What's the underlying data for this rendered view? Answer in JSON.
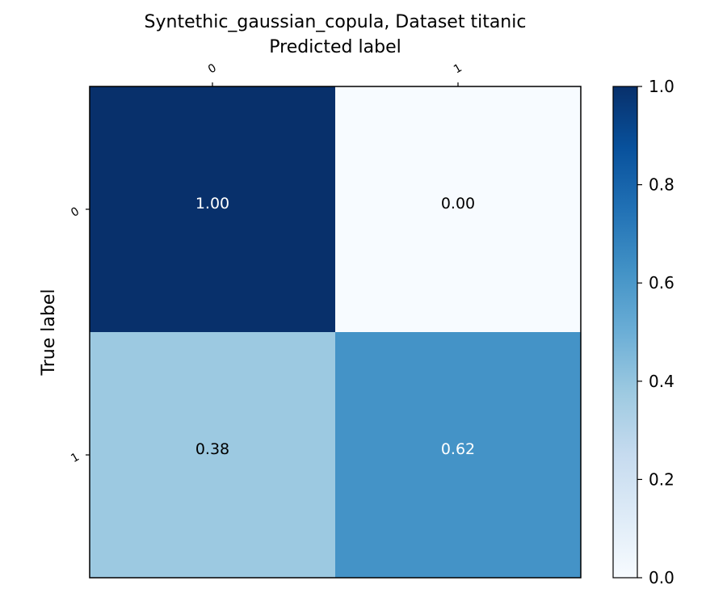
{
  "chart_data": {
    "type": "heatmap",
    "title": "Syntethic_gaussian_copula, Dataset titanic",
    "xlabel": "Predicted label",
    "ylabel": "True label",
    "x_categories": [
      "0",
      "1"
    ],
    "y_categories": [
      "0",
      "1"
    ],
    "values": [
      [
        1.0,
        0.0
      ],
      [
        0.38,
        0.62
      ]
    ],
    "cell_labels": [
      [
        "1.00",
        "0.00"
      ],
      [
        "0.38",
        "0.62"
      ]
    ],
    "colormap": "Blues",
    "colorbar": {
      "range": [
        0.0,
        1.0
      ],
      "ticks": [
        "0.0",
        "0.2",
        "0.4",
        "0.6",
        "0.8",
        "1.0"
      ]
    },
    "x_axis_position": "top",
    "grid": false
  }
}
